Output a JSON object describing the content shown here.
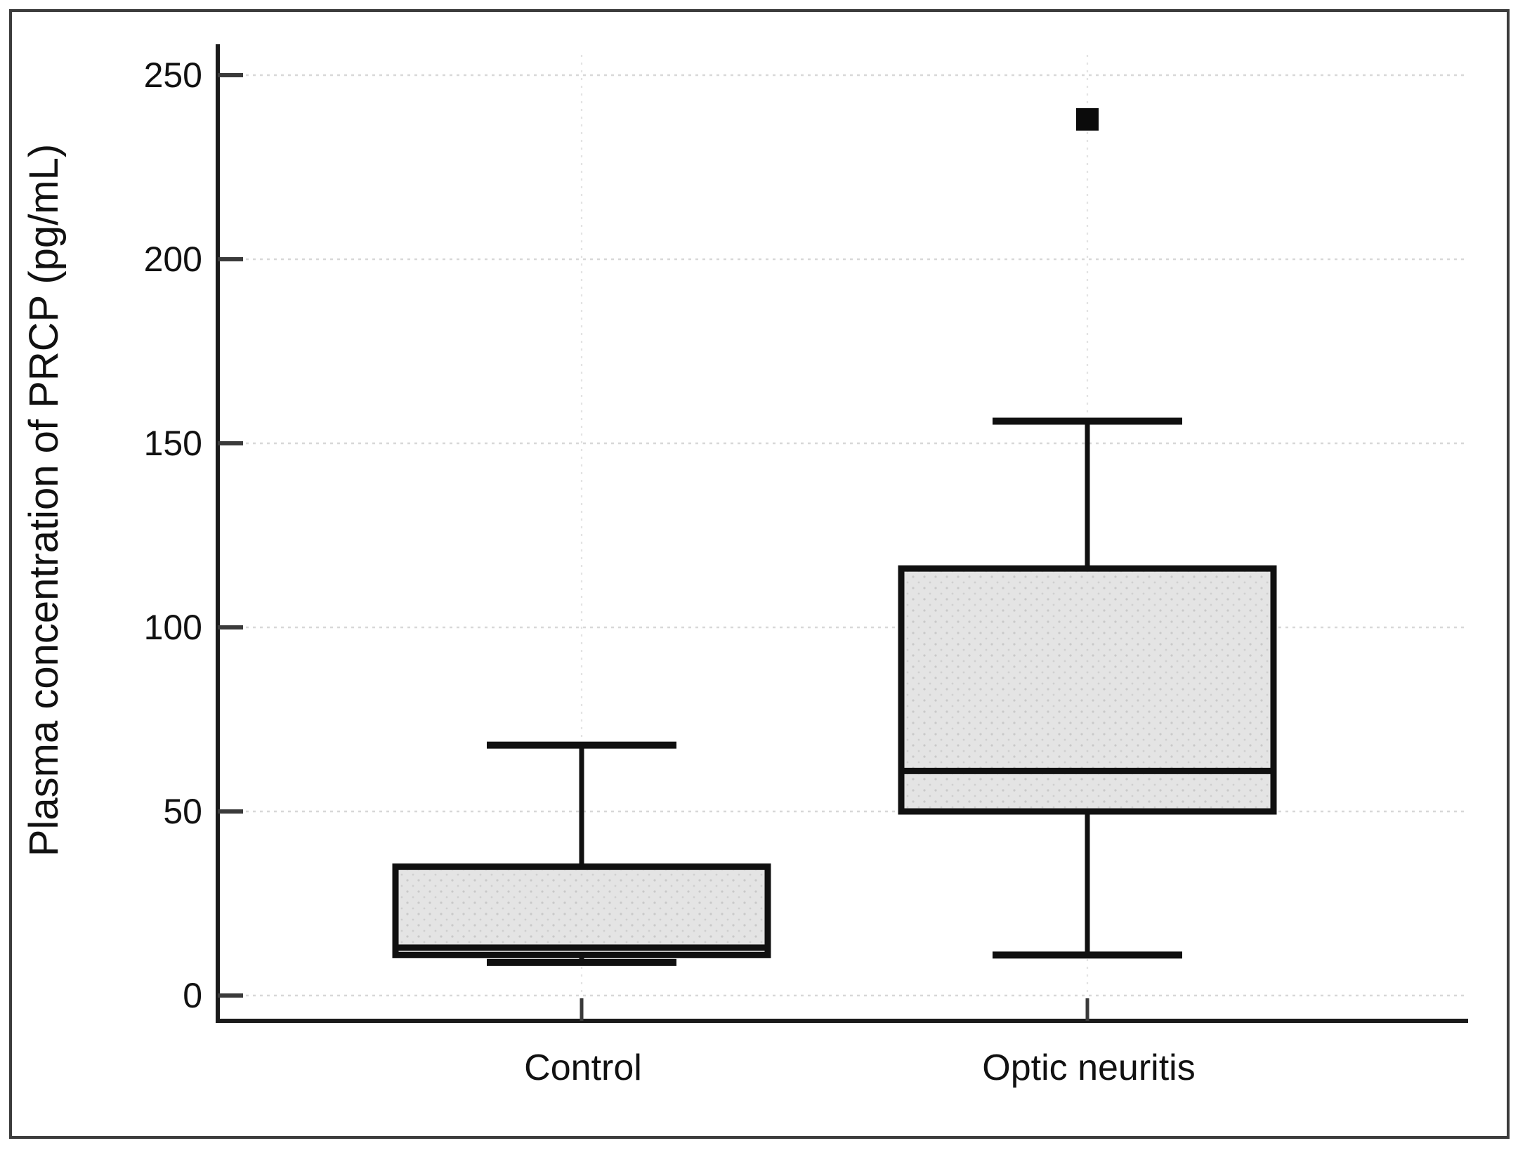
{
  "figure": {
    "background": "#ffffff",
    "frame_color": "#3c3c3c"
  },
  "chart_data": {
    "type": "box",
    "title": "",
    "ylabel": "Plasma concentration of PRCP (pg/mL)",
    "xlabel": "",
    "categories": [
      "Control",
      "Optic neuritis"
    ],
    "yticks": [
      0,
      50,
      100,
      150,
      200,
      250
    ],
    "ylim": [
      0,
      250
    ],
    "grid": "dotted light horizontal line at every y tick; faint dotted vertical line at each category center",
    "legend": "none",
    "series": [
      {
        "name": "Control",
        "whisker_low": 9,
        "q1": 11,
        "median": 13,
        "q3": 35,
        "whisker_high": 68,
        "outliers": []
      },
      {
        "name": "Optic neuritis",
        "whisker_low": 11,
        "q1": 50,
        "median": 61,
        "q3": 116,
        "whisker_high": 156,
        "outliers": [
          238
        ]
      }
    ],
    "colors": {
      "box_fill": "#e4e4e4",
      "box_dot_texture": "#c9c9c9",
      "box_border": "#101010",
      "median": "#101010",
      "whisker": "#101010",
      "grid_line": "#d8d8d8",
      "tick": "#3a3a3a",
      "axis": "#1a1a1a",
      "text": "#111111",
      "outlier": "#0b0b0b"
    }
  }
}
